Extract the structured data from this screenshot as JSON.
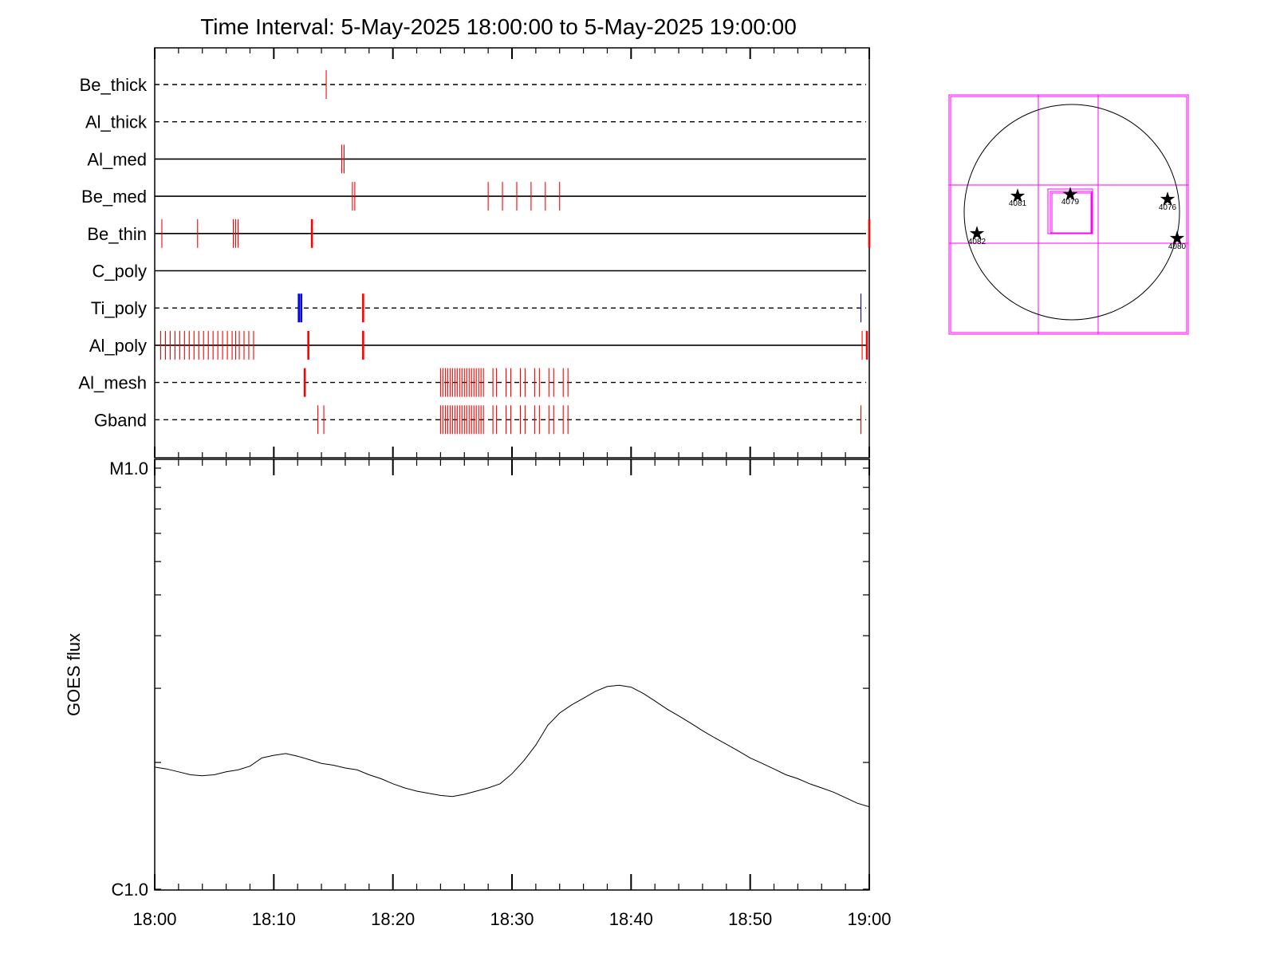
{
  "title": "Time Interval:  5-May-2025 18:00:00 to  5-May-2025 19:00:00",
  "chart_data": [
    {
      "type": "timeline",
      "x_unit": "minutes after 18:00",
      "xlim": [
        0,
        60
      ],
      "rows": [
        {
          "name": "Be_thick",
          "line": "dashed",
          "events": [
            {
              "t": 14.4,
              "color": "red",
              "width": "thin"
            }
          ]
        },
        {
          "name": "Al_thick",
          "line": "dashed",
          "events": []
        },
        {
          "name": "Al_med",
          "line": "solid",
          "events": [
            {
              "t": 15.7,
              "color": "red",
              "width": "thin"
            },
            {
              "t": 15.9,
              "color": "red",
              "width": "thin"
            }
          ]
        },
        {
          "name": "Be_med",
          "line": "solid",
          "events": [
            {
              "t": 16.6,
              "color": "red",
              "width": "thin"
            },
            {
              "t": 16.8,
              "color": "red",
              "width": "thin"
            },
            {
              "t": 28.0,
              "color": "red",
              "width": "thin"
            },
            {
              "t": 29.2,
              "color": "red",
              "width": "thin"
            },
            {
              "t": 30.4,
              "color": "red",
              "width": "thin"
            },
            {
              "t": 31.6,
              "color": "red",
              "width": "thin"
            },
            {
              "t": 32.8,
              "color": "red",
              "width": "thin"
            },
            {
              "t": 34.0,
              "color": "red",
              "width": "thin"
            }
          ]
        },
        {
          "name": "Be_thin",
          "line": "solid",
          "events": [
            {
              "t": 0.6,
              "color": "red",
              "width": "thin"
            },
            {
              "t": 3.6,
              "color": "red",
              "width": "thin"
            },
            {
              "t": 6.6,
              "color": "red",
              "width": "thin"
            },
            {
              "t": 6.8,
              "color": "red",
              "width": "thin"
            },
            {
              "t": 7.0,
              "color": "red",
              "width": "thin"
            },
            {
              "t": 13.2,
              "color": "red",
              "width": "thick"
            },
            {
              "t": 60.0,
              "color": "red",
              "width": "thick"
            }
          ]
        },
        {
          "name": "C_poly",
          "line": "solid",
          "events": []
        },
        {
          "name": "Ti_poly",
          "line": "dashed",
          "events": [
            {
              "t": 12.1,
              "color": "blue",
              "width": "thick"
            },
            {
              "t": 12.3,
              "color": "blue",
              "width": "thick"
            },
            {
              "t": 17.5,
              "color": "red",
              "width": "thick"
            },
            {
              "t": 59.3,
              "color": "blue",
              "width": "thin"
            }
          ]
        },
        {
          "name": "Al_poly",
          "line": "solid",
          "events": [
            {
              "t": 0.5,
              "color": "red",
              "width": "thin"
            },
            {
              "t": 0.9,
              "color": "red",
              "width": "thin"
            },
            {
              "t": 1.3,
              "color": "red",
              "width": "thin"
            },
            {
              "t": 1.7,
              "color": "red",
              "width": "thin"
            },
            {
              "t": 2.1,
              "color": "red",
              "width": "thin"
            },
            {
              "t": 2.5,
              "color": "red",
              "width": "thin"
            },
            {
              "t": 2.9,
              "color": "red",
              "width": "thin"
            },
            {
              "t": 3.3,
              "color": "red",
              "width": "thin"
            },
            {
              "t": 3.7,
              "color": "red",
              "width": "thin"
            },
            {
              "t": 4.1,
              "color": "red",
              "width": "thin"
            },
            {
              "t": 4.5,
              "color": "red",
              "width": "thin"
            },
            {
              "t": 4.9,
              "color": "red",
              "width": "thin"
            },
            {
              "t": 5.3,
              "color": "red",
              "width": "thin"
            },
            {
              "t": 5.7,
              "color": "red",
              "width": "thin"
            },
            {
              "t": 6.1,
              "color": "red",
              "width": "thin"
            },
            {
              "t": 6.5,
              "color": "red",
              "width": "thin"
            },
            {
              "t": 6.8,
              "color": "red",
              "width": "thin"
            },
            {
              "t": 7.1,
              "color": "red",
              "width": "thin"
            },
            {
              "t": 7.5,
              "color": "red",
              "width": "thin"
            },
            {
              "t": 7.9,
              "color": "red",
              "width": "thin"
            },
            {
              "t": 8.3,
              "color": "red",
              "width": "thin"
            },
            {
              "t": 12.9,
              "color": "red",
              "width": "thick"
            },
            {
              "t": 17.5,
              "color": "red",
              "width": "thick"
            },
            {
              "t": 59.4,
              "color": "red",
              "width": "thin"
            },
            {
              "t": 59.8,
              "color": "red",
              "width": "thick"
            }
          ]
        },
        {
          "name": "Al_mesh",
          "line": "dashed",
          "events": [
            {
              "t": 12.6,
              "color": "red",
              "width": "thick"
            },
            {
              "t": 24.0,
              "color": "red",
              "width": "thin"
            },
            {
              "t": 24.2,
              "color": "red",
              "width": "thin"
            },
            {
              "t": 24.4,
              "color": "red",
              "width": "thin"
            },
            {
              "t": 24.6,
              "color": "red",
              "width": "thin"
            },
            {
              "t": 24.8,
              "color": "red",
              "width": "thin"
            },
            {
              "t": 25.0,
              "color": "red",
              "width": "thin"
            },
            {
              "t": 25.2,
              "color": "red",
              "width": "thin"
            },
            {
              "t": 25.4,
              "color": "red",
              "width": "thin"
            },
            {
              "t": 25.6,
              "color": "red",
              "width": "thin"
            },
            {
              "t": 25.8,
              "color": "red",
              "width": "thin"
            },
            {
              "t": 26.0,
              "color": "red",
              "width": "thin"
            },
            {
              "t": 26.2,
              "color": "red",
              "width": "thin"
            },
            {
              "t": 26.4,
              "color": "red",
              "width": "thin"
            },
            {
              "t": 26.6,
              "color": "red",
              "width": "thin"
            },
            {
              "t": 26.8,
              "color": "red",
              "width": "thin"
            },
            {
              "t": 27.0,
              "color": "red",
              "width": "thin"
            },
            {
              "t": 27.2,
              "color": "red",
              "width": "thin"
            },
            {
              "t": 27.4,
              "color": "red",
              "width": "thin"
            },
            {
              "t": 27.6,
              "color": "red",
              "width": "thin"
            },
            {
              "t": 28.4,
              "color": "red",
              "width": "thin"
            },
            {
              "t": 28.7,
              "color": "red",
              "width": "thin"
            },
            {
              "t": 29.5,
              "color": "red",
              "width": "thin"
            },
            {
              "t": 29.9,
              "color": "red",
              "width": "thin"
            },
            {
              "t": 30.7,
              "color": "red",
              "width": "thin"
            },
            {
              "t": 31.1,
              "color": "red",
              "width": "thin"
            },
            {
              "t": 31.9,
              "color": "red",
              "width": "thin"
            },
            {
              "t": 32.3,
              "color": "red",
              "width": "thin"
            },
            {
              "t": 33.1,
              "color": "red",
              "width": "thin"
            },
            {
              "t": 33.5,
              "color": "red",
              "width": "thin"
            },
            {
              "t": 34.3,
              "color": "red",
              "width": "thin"
            },
            {
              "t": 34.7,
              "color": "red",
              "width": "thin"
            }
          ]
        },
        {
          "name": "Gband",
          "line": "dashed",
          "events": [
            {
              "t": 13.7,
              "color": "red",
              "width": "thin"
            },
            {
              "t": 14.2,
              "color": "red",
              "width": "thin"
            },
            {
              "t": 24.0,
              "color": "red",
              "width": "thin"
            },
            {
              "t": 24.2,
              "color": "red",
              "width": "thin"
            },
            {
              "t": 24.4,
              "color": "red",
              "width": "thin"
            },
            {
              "t": 24.6,
              "color": "red",
              "width": "thin"
            },
            {
              "t": 24.8,
              "color": "red",
              "width": "thin"
            },
            {
              "t": 25.0,
              "color": "red",
              "width": "thin"
            },
            {
              "t": 25.2,
              "color": "red",
              "width": "thin"
            },
            {
              "t": 25.4,
              "color": "red",
              "width": "thin"
            },
            {
              "t": 25.6,
              "color": "red",
              "width": "thin"
            },
            {
              "t": 25.8,
              "color": "red",
              "width": "thin"
            },
            {
              "t": 26.0,
              "color": "red",
              "width": "thin"
            },
            {
              "t": 26.2,
              "color": "red",
              "width": "thin"
            },
            {
              "t": 26.4,
              "color": "red",
              "width": "thin"
            },
            {
              "t": 26.6,
              "color": "red",
              "width": "thin"
            },
            {
              "t": 26.8,
              "color": "red",
              "width": "thin"
            },
            {
              "t": 27.0,
              "color": "red",
              "width": "thin"
            },
            {
              "t": 27.2,
              "color": "red",
              "width": "thin"
            },
            {
              "t": 27.4,
              "color": "red",
              "width": "thin"
            },
            {
              "t": 27.6,
              "color": "red",
              "width": "thin"
            },
            {
              "t": 28.4,
              "color": "red",
              "width": "thin"
            },
            {
              "t": 28.7,
              "color": "red",
              "width": "thin"
            },
            {
              "t": 29.5,
              "color": "red",
              "width": "thin"
            },
            {
              "t": 29.9,
              "color": "red",
              "width": "thin"
            },
            {
              "t": 30.7,
              "color": "red",
              "width": "thin"
            },
            {
              "t": 31.1,
              "color": "red",
              "width": "thin"
            },
            {
              "t": 31.9,
              "color": "red",
              "width": "thin"
            },
            {
              "t": 32.3,
              "color": "red",
              "width": "thin"
            },
            {
              "t": 33.1,
              "color": "red",
              "width": "thin"
            },
            {
              "t": 33.5,
              "color": "red",
              "width": "thin"
            },
            {
              "t": 34.3,
              "color": "red",
              "width": "thin"
            },
            {
              "t": 34.7,
              "color": "red",
              "width": "thin"
            },
            {
              "t": 59.3,
              "color": "red",
              "width": "thin"
            }
          ]
        }
      ]
    },
    {
      "type": "line",
      "ylabel": "GOES flux",
      "x_unit": "minutes after 18:00",
      "xlim": [
        0,
        60
      ],
      "ylog": true,
      "ylim": [
        1e-06,
        1e-05
      ],
      "ytick_labels": [
        {
          "v": 1e-05,
          "label": "M1.0"
        },
        {
          "v": 1e-06,
          "label": "C1.0"
        }
      ],
      "xticks": [
        {
          "t": 0,
          "label": "18:00"
        },
        {
          "t": 10,
          "label": "18:10"
        },
        {
          "t": 20,
          "label": "18:20"
        },
        {
          "t": 30,
          "label": "18:30"
        },
        {
          "t": 40,
          "label": "18:40"
        },
        {
          "t": 50,
          "label": "18:50"
        },
        {
          "t": 60,
          "label": "19:00"
        }
      ],
      "series": [
        {
          "color": "#000000",
          "points": [
            [
              0,
              1.95e-06
            ],
            [
              1,
              1.93e-06
            ],
            [
              2,
              1.9e-06
            ],
            [
              3,
              1.87e-06
            ],
            [
              4,
              1.86e-06
            ],
            [
              5,
              1.87e-06
            ],
            [
              6,
              1.9e-06
            ],
            [
              7,
              1.92e-06
            ],
            [
              8,
              1.96e-06
            ],
            [
              9,
              2.05e-06
            ],
            [
              10,
              2.08e-06
            ],
            [
              11,
              2.1e-06
            ],
            [
              12,
              2.07e-06
            ],
            [
              13,
              2.03e-06
            ],
            [
              14,
              1.99e-06
            ],
            [
              15,
              1.97e-06
            ],
            [
              16,
              1.94e-06
            ],
            [
              17,
              1.92e-06
            ],
            [
              18,
              1.87e-06
            ],
            [
              19,
              1.83e-06
            ],
            [
              20,
              1.78e-06
            ],
            [
              21,
              1.74e-06
            ],
            [
              22,
              1.71e-06
            ],
            [
              23,
              1.69e-06
            ],
            [
              24,
              1.67e-06
            ],
            [
              25,
              1.66e-06
            ],
            [
              26,
              1.68e-06
            ],
            [
              27,
              1.71e-06
            ],
            [
              28,
              1.74e-06
            ],
            [
              29,
              1.78e-06
            ],
            [
              30,
              1.88e-06
            ],
            [
              31,
              2.02e-06
            ],
            [
              32,
              2.2e-06
            ],
            [
              33,
              2.45e-06
            ],
            [
              34,
              2.62e-06
            ],
            [
              35,
              2.74e-06
            ],
            [
              36,
              2.84e-06
            ],
            [
              37,
              2.95e-06
            ],
            [
              38,
              3.03e-06
            ],
            [
              39,
              3.05e-06
            ],
            [
              40,
              3.02e-06
            ],
            [
              41,
              2.92e-06
            ],
            [
              42,
              2.8e-06
            ],
            [
              43,
              2.68e-06
            ],
            [
              44,
              2.58e-06
            ],
            [
              45,
              2.48e-06
            ],
            [
              46,
              2.38e-06
            ],
            [
              47,
              2.29e-06
            ],
            [
              48,
              2.21e-06
            ],
            [
              49,
              2.13e-06
            ],
            [
              50,
              2.05e-06
            ],
            [
              51,
              1.99e-06
            ],
            [
              52,
              1.93e-06
            ],
            [
              53,
              1.87e-06
            ],
            [
              54,
              1.83e-06
            ],
            [
              55,
              1.78e-06
            ],
            [
              56,
              1.74e-06
            ],
            [
              57,
              1.7e-06
            ],
            [
              58,
              1.65e-06
            ],
            [
              59,
              1.6e-06
            ],
            [
              60,
              1.57e-06
            ]
          ]
        }
      ]
    }
  ],
  "solar_map": {
    "colors": {
      "grid": "#ff00ff",
      "star": "#ff0000",
      "disk": "#000000"
    },
    "active_regions": [
      "4081",
      "4079",
      "4076",
      "4082",
      "4080"
    ]
  }
}
